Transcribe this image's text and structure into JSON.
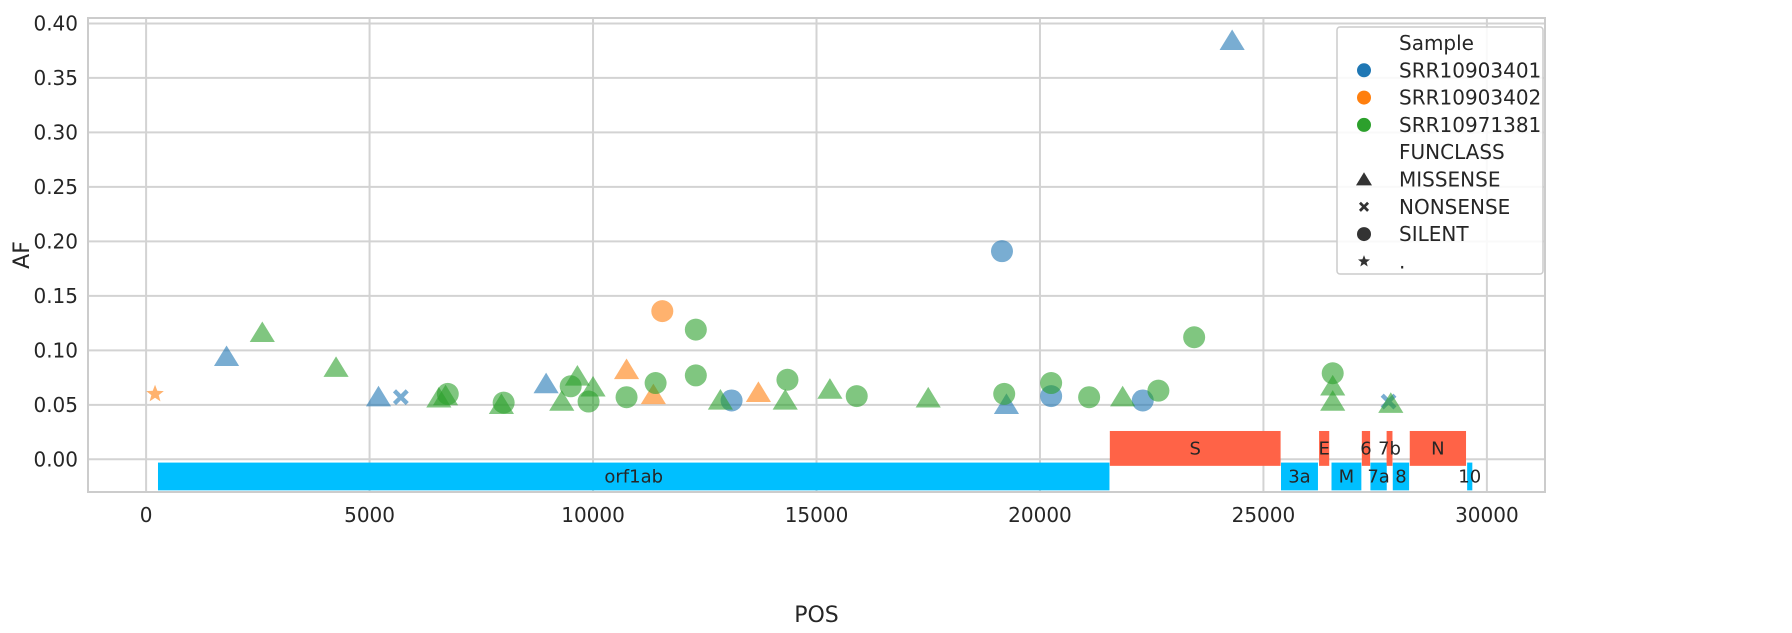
{
  "chart_data": {
    "type": "scatter",
    "xlabel": "POS",
    "ylabel": "AF",
    "xlim": [
      -1300,
      31300
    ],
    "ylim": [
      -0.03,
      0.405
    ],
    "xticks": [
      0,
      5000,
      10000,
      15000,
      20000,
      25000,
      30000
    ],
    "yticks": [
      0.0,
      0.05,
      0.1,
      0.15,
      0.2,
      0.25,
      0.3,
      0.35,
      0.4
    ],
    "ytick_labels": [
      "0.00",
      "0.05",
      "0.10",
      "0.15",
      "0.20",
      "0.25",
      "0.30",
      "0.35",
      "0.40"
    ],
    "grid": true,
    "colors": {
      "SRR10903401": "#1f77b4",
      "SRR10903402": "#ff7f0e",
      "SRR10971381": "#2ca02c",
      "forward_gene": "#00bfff",
      "reverse_gene": "#ff6347",
      "grid": "#d3d3d3"
    },
    "legend": {
      "position": "top-right",
      "hue_title": "Sample",
      "hue_items": [
        {
          "label": "SRR10903401",
          "series": "SRR10903401"
        },
        {
          "label": "SRR10903402",
          "series": "SRR10903402"
        },
        {
          "label": "SRR10971381",
          "series": "SRR10971381"
        }
      ],
      "style_title": "FUNCLASS",
      "style_items": [
        {
          "label": "MISSENSE",
          "marker": "triangle"
        },
        {
          "label": "NONSENSE",
          "marker": "x"
        },
        {
          "label": "SILENT",
          "marker": "circle"
        },
        {
          "label": ".",
          "marker": "star"
        }
      ]
    },
    "series": [
      {
        "name": "SRR10903401",
        "points": [
          {
            "x": 1800,
            "y": 0.094,
            "marker": "triangle"
          },
          {
            "x": 5200,
            "y": 0.057,
            "marker": "triangle"
          },
          {
            "x": 5700,
            "y": 0.057,
            "marker": "x"
          },
          {
            "x": 8950,
            "y": 0.069,
            "marker": "triangle"
          },
          {
            "x": 13100,
            "y": 0.054,
            "marker": "circle"
          },
          {
            "x": 19150,
            "y": 0.191,
            "marker": "circle"
          },
          {
            "x": 19250,
            "y": 0.05,
            "marker": "triangle"
          },
          {
            "x": 20250,
            "y": 0.058,
            "marker": "circle"
          },
          {
            "x": 22300,
            "y": 0.054,
            "marker": "circle"
          },
          {
            "x": 24300,
            "y": 0.384,
            "marker": "triangle"
          },
          {
            "x": 27800,
            "y": 0.053,
            "marker": "x"
          }
        ]
      },
      {
        "name": "SRR10903402",
        "points": [
          {
            "x": 200,
            "y": 0.06,
            "marker": "star"
          },
          {
            "x": 10750,
            "y": 0.082,
            "marker": "triangle"
          },
          {
            "x": 11350,
            "y": 0.059,
            "marker": "triangle"
          },
          {
            "x": 11550,
            "y": 0.136,
            "marker": "circle"
          },
          {
            "x": 13700,
            "y": 0.061,
            "marker": "triangle"
          }
        ]
      },
      {
        "name": "SRR10971381",
        "points": [
          {
            "x": 2600,
            "y": 0.116,
            "marker": "triangle"
          },
          {
            "x": 4250,
            "y": 0.084,
            "marker": "triangle"
          },
          {
            "x": 6550,
            "y": 0.056,
            "marker": "triangle"
          },
          {
            "x": 6700,
            "y": 0.058,
            "marker": "triangle"
          },
          {
            "x": 6750,
            "y": 0.06,
            "marker": "circle"
          },
          {
            "x": 7950,
            "y": 0.05,
            "marker": "triangle"
          },
          {
            "x": 8000,
            "y": 0.052,
            "marker": "circle"
          },
          {
            "x": 9300,
            "y": 0.053,
            "marker": "triangle"
          },
          {
            "x": 9500,
            "y": 0.067,
            "marker": "circle"
          },
          {
            "x": 9650,
            "y": 0.076,
            "marker": "triangle"
          },
          {
            "x": 9900,
            "y": 0.053,
            "marker": "circle"
          },
          {
            "x": 10000,
            "y": 0.066,
            "marker": "triangle"
          },
          {
            "x": 10750,
            "y": 0.057,
            "marker": "circle"
          },
          {
            "x": 11400,
            "y": 0.07,
            "marker": "circle"
          },
          {
            "x": 12300,
            "y": 0.077,
            "marker": "circle"
          },
          {
            "x": 12300,
            "y": 0.119,
            "marker": "circle"
          },
          {
            "x": 12850,
            "y": 0.054,
            "marker": "triangle"
          },
          {
            "x": 14300,
            "y": 0.054,
            "marker": "triangle"
          },
          {
            "x": 14350,
            "y": 0.073,
            "marker": "circle"
          },
          {
            "x": 15300,
            "y": 0.064,
            "marker": "triangle"
          },
          {
            "x": 15900,
            "y": 0.058,
            "marker": "circle"
          },
          {
            "x": 17500,
            "y": 0.056,
            "marker": "triangle"
          },
          {
            "x": 19200,
            "y": 0.06,
            "marker": "circle"
          },
          {
            "x": 20250,
            "y": 0.07,
            "marker": "circle"
          },
          {
            "x": 21100,
            "y": 0.057,
            "marker": "circle"
          },
          {
            "x": 21850,
            "y": 0.057,
            "marker": "triangle"
          },
          {
            "x": 22650,
            "y": 0.063,
            "marker": "circle"
          },
          {
            "x": 23450,
            "y": 0.112,
            "marker": "circle"
          },
          {
            "x": 26550,
            "y": 0.079,
            "marker": "circle"
          },
          {
            "x": 26550,
            "y": 0.067,
            "marker": "triangle"
          },
          {
            "x": 26550,
            "y": 0.053,
            "marker": "triangle"
          },
          {
            "x": 27850,
            "y": 0.051,
            "marker": "triangle"
          }
        ]
      }
    ],
    "genes": [
      {
        "label": "orf1ab",
        "start": 266,
        "end": 21555,
        "strand": "+"
      },
      {
        "label": "S",
        "start": 21563,
        "end": 25384,
        "strand": "-"
      },
      {
        "label": "3a",
        "start": 25393,
        "end": 26220,
        "strand": "+"
      },
      {
        "label": "E",
        "start": 26245,
        "end": 26472,
        "strand": "-"
      },
      {
        "label": "M",
        "start": 26523,
        "end": 27191,
        "strand": "+"
      },
      {
        "label": "6",
        "start": 27202,
        "end": 27387,
        "strand": "-"
      },
      {
        "label": "7a",
        "start": 27394,
        "end": 27759,
        "strand": "+"
      },
      {
        "label": "7b",
        "start": 27756,
        "end": 27887,
        "strand": "-"
      },
      {
        "label": "8",
        "start": 27894,
        "end": 28259,
        "strand": "+"
      },
      {
        "label": "N",
        "start": 28274,
        "end": 29533,
        "strand": "-"
      },
      {
        "label": "10",
        "start": 29558,
        "end": 29674,
        "strand": "+"
      }
    ]
  }
}
